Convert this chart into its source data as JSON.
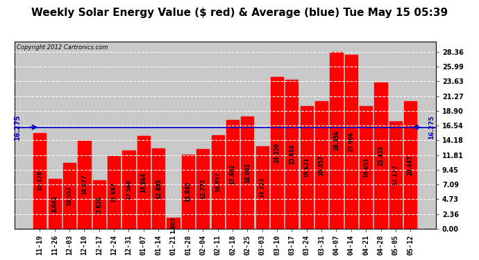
{
  "title": "Weekly Solar Energy Value ($ red) & Average (blue) Tue May 15 05:39",
  "copyright": "Copyright 2012 Cartronics.com",
  "categories": [
    "11-19",
    "11-26",
    "12-03",
    "12-10",
    "12-17",
    "12-24",
    "12-31",
    "01-07",
    "01-14",
    "01-21",
    "01-28",
    "02-04",
    "02-11",
    "02-18",
    "02-25",
    "03-03",
    "03-10",
    "03-17",
    "03-24",
    "03-31",
    "04-07",
    "04-14",
    "04-21",
    "04-28",
    "05-05",
    "05-12"
  ],
  "values": [
    15.378,
    8.043,
    10.557,
    14.077,
    7.826,
    11.687,
    12.56,
    14.864,
    12.885,
    1.802,
    11.84,
    12.777,
    14.957,
    17.402,
    18.002,
    13.223,
    24.32,
    23.91,
    19.621,
    20.457,
    28.356,
    27.906,
    19.651,
    23.435,
    17.177,
    20.447
  ],
  "average": 16.275,
  "average_label": "16.275",
  "bar_color": "#ff0000",
  "avg_line_color": "#0000cc",
  "background_color": "#ffffff",
  "plot_bg_color": "#c8c8c8",
  "grid_color": "#ffffff",
  "yticks_right": [
    0.0,
    2.36,
    4.73,
    7.09,
    9.45,
    11.81,
    14.18,
    16.54,
    18.9,
    21.27,
    23.63,
    25.99,
    28.36
  ],
  "ylim": [
    0,
    30.0
  ],
  "title_fontsize": 11,
  "tick_fontsize": 7,
  "value_fontsize": 5.5,
  "copyright_fontsize": 6
}
